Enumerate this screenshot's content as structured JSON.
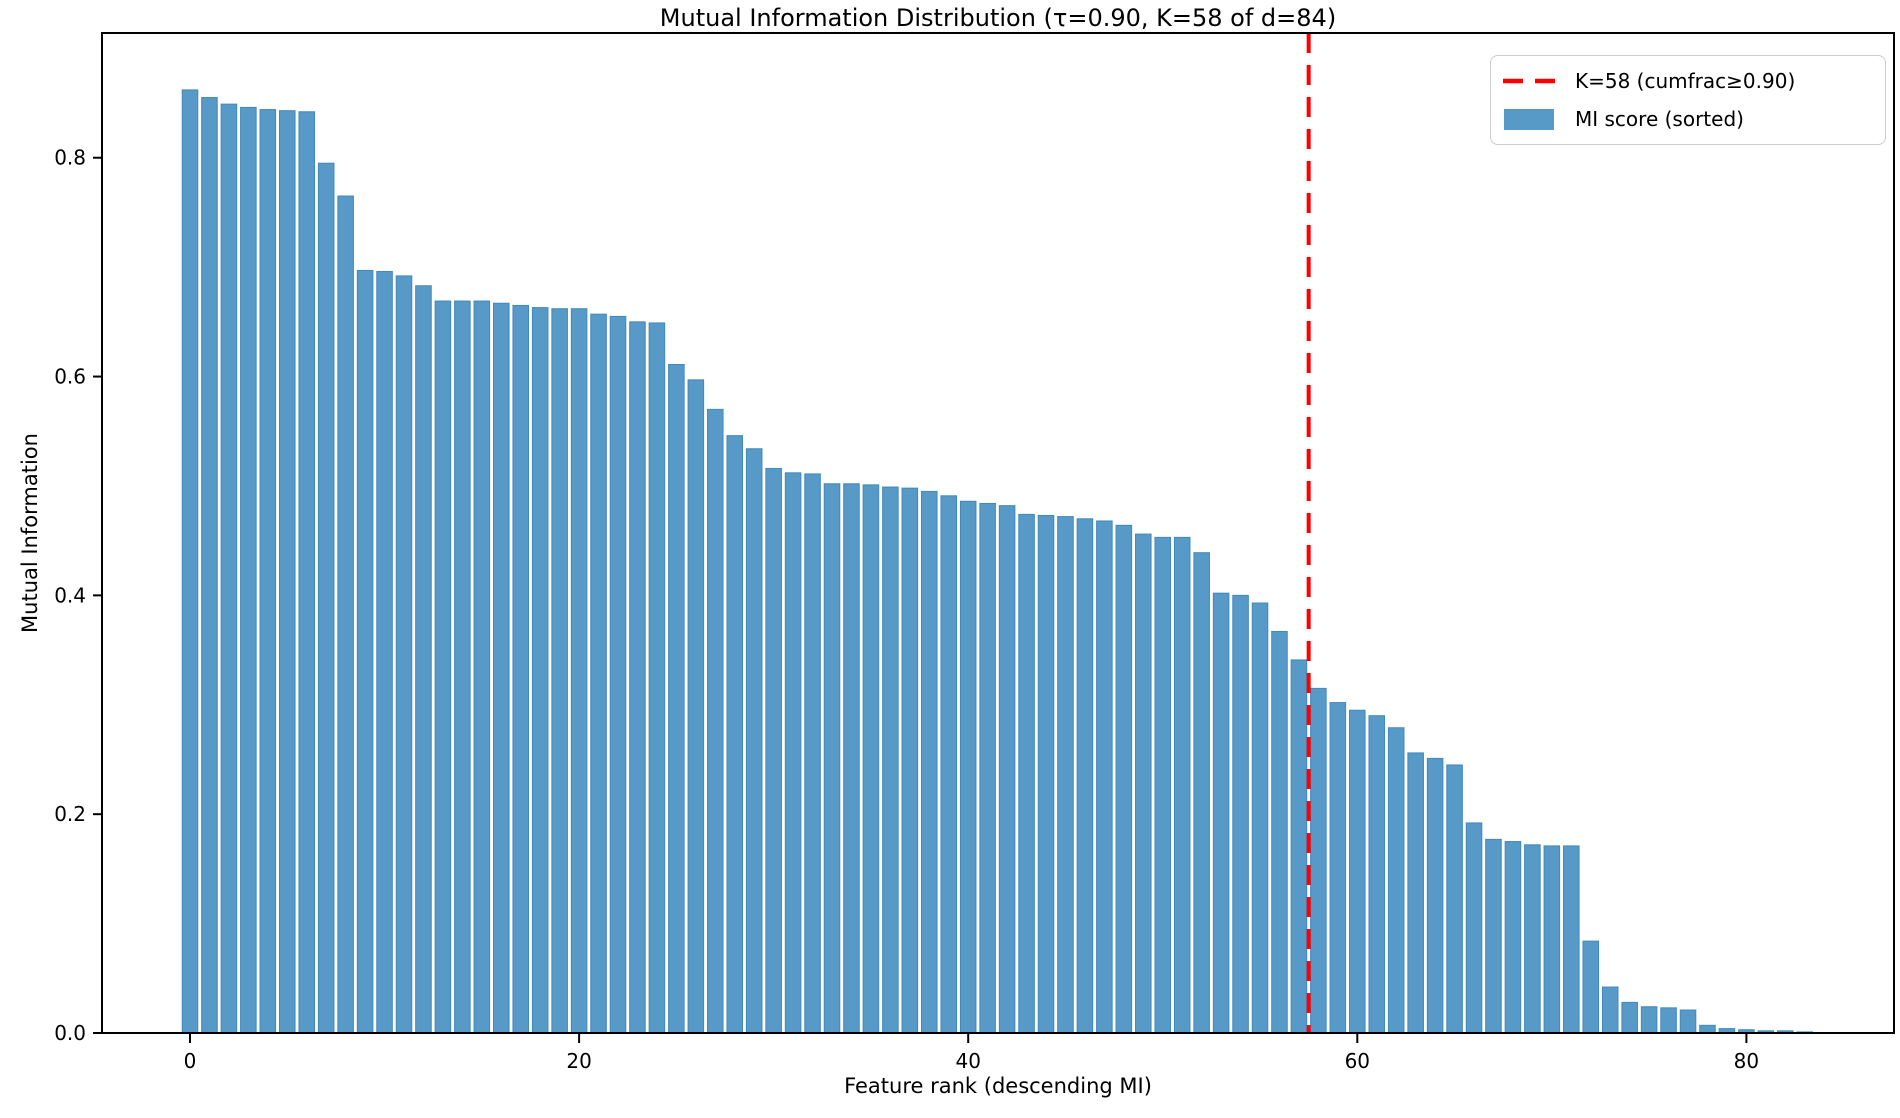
{
  "figure": {
    "title": "Mutual Information Distribution (τ=0.90, K=58 of d=84)",
    "xlabel": "Feature rank (descending MI)",
    "ylabel": "Mutual Information"
  },
  "legend": {
    "threshold_label": "K=58 (cumfrac≥0.90)",
    "bars_label": "MI score (sorted)"
  },
  "colors": {
    "bar_fill": "#5799c7",
    "bar_edge": "#4189bd",
    "threshold_line": "#ff0000",
    "axis": "#000000",
    "legend_border": "#cccccc"
  },
  "chart_data": {
    "type": "bar",
    "title": "Mutual Information Distribution (τ=0.90, K=58 of d=84)",
    "xlabel": "Feature rank (descending MI)",
    "ylabel": "Mutual Information",
    "x_ticks": [
      0,
      20,
      40,
      60,
      80
    ],
    "y_ticks": [
      0.0,
      0.2,
      0.4,
      0.6,
      0.8
    ],
    "xlim": [
      -4.5,
      87.6
    ],
    "ylim": [
      0,
      0.914
    ],
    "grid": false,
    "legend_position": "upper right",
    "bar_width_fraction": 0.8,
    "threshold": {
      "x": 57.5,
      "K": 58,
      "d": 84,
      "tau": 0.9,
      "style": "dashed",
      "color": "#ff0000",
      "label": "K=58 (cumfrac≥0.90)"
    },
    "series": [
      {
        "name": "MI score (sorted)",
        "x_is_feature_rank": true,
        "values": [
          0.862,
          0.855,
          0.849,
          0.846,
          0.844,
          0.843,
          0.842,
          0.795,
          0.765,
          0.697,
          0.696,
          0.692,
          0.683,
          0.669,
          0.669,
          0.669,
          0.667,
          0.665,
          0.663,
          0.662,
          0.662,
          0.657,
          0.655,
          0.65,
          0.649,
          0.611,
          0.597,
          0.57,
          0.546,
          0.534,
          0.516,
          0.512,
          0.511,
          0.502,
          0.502,
          0.501,
          0.499,
          0.498,
          0.495,
          0.491,
          0.486,
          0.484,
          0.482,
          0.474,
          0.473,
          0.472,
          0.47,
          0.468,
          0.464,
          0.456,
          0.453,
          0.453,
          0.439,
          0.402,
          0.4,
          0.393,
          0.367,
          0.341,
          0.315,
          0.302,
          0.295,
          0.29,
          0.279,
          0.256,
          0.251,
          0.245,
          0.192,
          0.177,
          0.175,
          0.172,
          0.171,
          0.171,
          0.084,
          0.042,
          0.028,
          0.024,
          0.023,
          0.021,
          0.007,
          0.004,
          0.003,
          0.002,
          0.002,
          0.001
        ]
      }
    ]
  }
}
